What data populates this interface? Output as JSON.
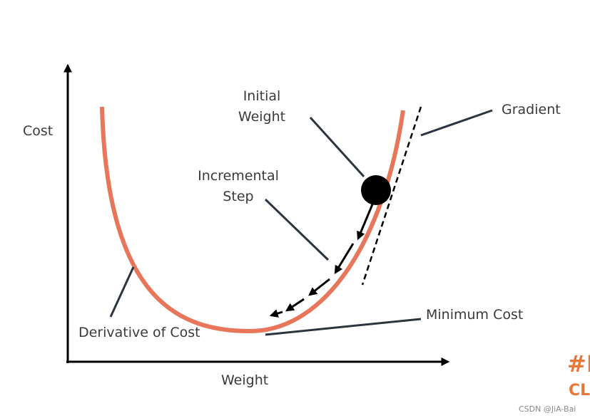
{
  "axes": {
    "y_label": "Cost",
    "x_label": "Weight"
  },
  "labels": {
    "initial_weight": [
      "Initial",
      "Weight"
    ],
    "incremental_step": [
      "Incremental",
      "Step"
    ],
    "gradient": "Gradient",
    "minimum_cost": "Minimum Cost",
    "derivative": "Derivative of Cost"
  },
  "corner": {
    "tag": "#I",
    "sub": "CL"
  },
  "watermark": "CSDN @JiA-Bai"
}
